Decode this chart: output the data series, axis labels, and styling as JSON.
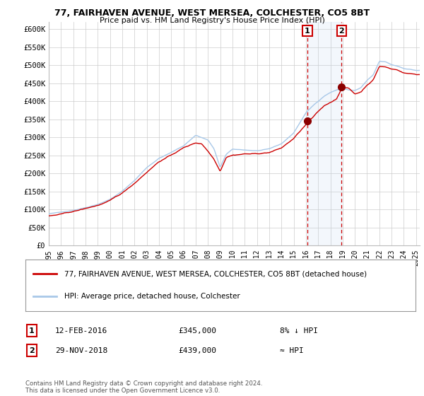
{
  "title_line1": "77, FAIRHAVEN AVENUE, WEST MERSEA, COLCHESTER, CO5 8BT",
  "title_line2": "Price paid vs. HM Land Registry's House Price Index (HPI)",
  "ylim": [
    0,
    620000
  ],
  "yticks": [
    0,
    50000,
    100000,
    150000,
    200000,
    250000,
    300000,
    350000,
    400000,
    450000,
    500000,
    550000,
    600000
  ],
  "ytick_labels": [
    "£0",
    "£50K",
    "£100K",
    "£150K",
    "£200K",
    "£250K",
    "£300K",
    "£350K",
    "£400K",
    "£450K",
    "£500K",
    "£550K",
    "£600K"
  ],
  "hpi_color": "#a8c8e8",
  "price_color": "#cc0000",
  "dark_red": "#8b0000",
  "background_color": "#ffffff",
  "grid_color": "#cccccc",
  "sale1_date": 2016.12,
  "sale1_price": 345000,
  "sale2_date": 2018.92,
  "sale2_price": 439000,
  "shade_start": 2016.12,
  "shade_end": 2018.92,
  "xmin": 1995,
  "xmax": 2025.3,
  "legend_label1": "77, FAIRHAVEN AVENUE, WEST MERSEA, COLCHESTER, CO5 8BT (detached house)",
  "legend_label2": "HPI: Average price, detached house, Colchester",
  "annotation1_num": "1",
  "annotation1_date": "12-FEB-2016",
  "annotation1_price": "£345,000",
  "annotation1_hpi": "8% ↓ HPI",
  "annotation2_num": "2",
  "annotation2_date": "29-NOV-2018",
  "annotation2_price": "£439,000",
  "annotation2_hpi": "≈ HPI",
  "footer": "Contains HM Land Registry data © Crown copyright and database right 2024.\nThis data is licensed under the Open Government Licence v3.0."
}
